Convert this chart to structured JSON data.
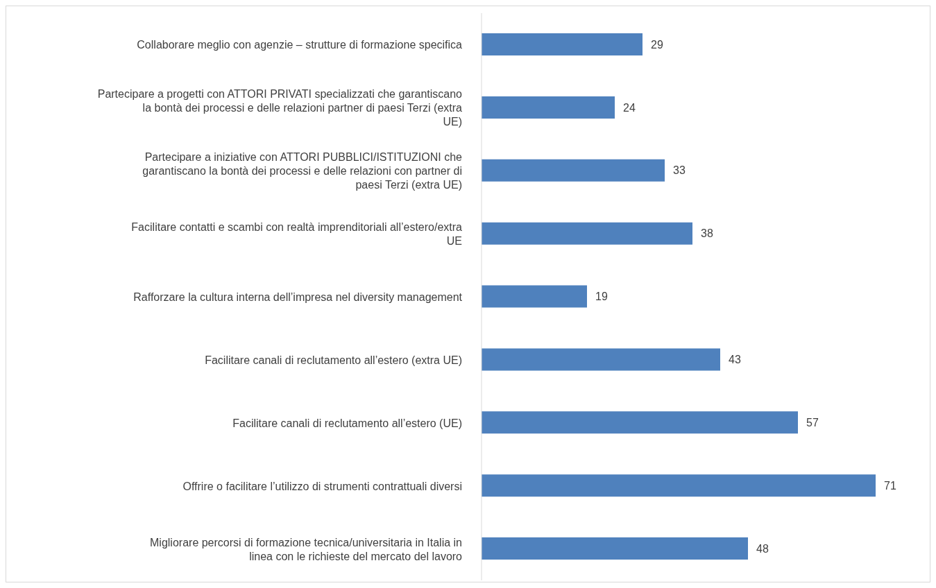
{
  "chart_data": {
    "type": "bar",
    "orientation": "horizontal",
    "categories": [
      "Collaborare meglio con agenzie – strutture di formazione specifica",
      "Partecipare a progetti con ATTORI PRIVATI specializzati che garantiscano la bontà dei processi e delle relazioni partner di paesi Terzi (extra UE)",
      "Partecipare a iniziative con ATTORI PUBBLICI/ISTITUZIONI che garantiscano la bontà dei processi e delle relazioni con partner di paesi Terzi (extra UE)",
      "Facilitare contatti e scambi con realtà imprenditoriali all’estero/extra UE",
      "Rafforzare la cultura interna dell’impresa nel diversity management",
      "Facilitare canali di reclutamento all’estero (extra UE)",
      "Facilitare canali di reclutamento all’estero (UE)",
      "Offrire o facilitare l’utilizzo di strumenti contrattuali diversi",
      "Migliorare percorsi di formazione tecnica/universitaria in Italia in linea con le richieste del mercato del lavoro"
    ],
    "values": [
      29,
      24,
      33,
      38,
      19,
      43,
      57,
      71,
      48
    ],
    "color": "#4f81bd",
    "data_labels": true,
    "tick_labels": "y"
  }
}
